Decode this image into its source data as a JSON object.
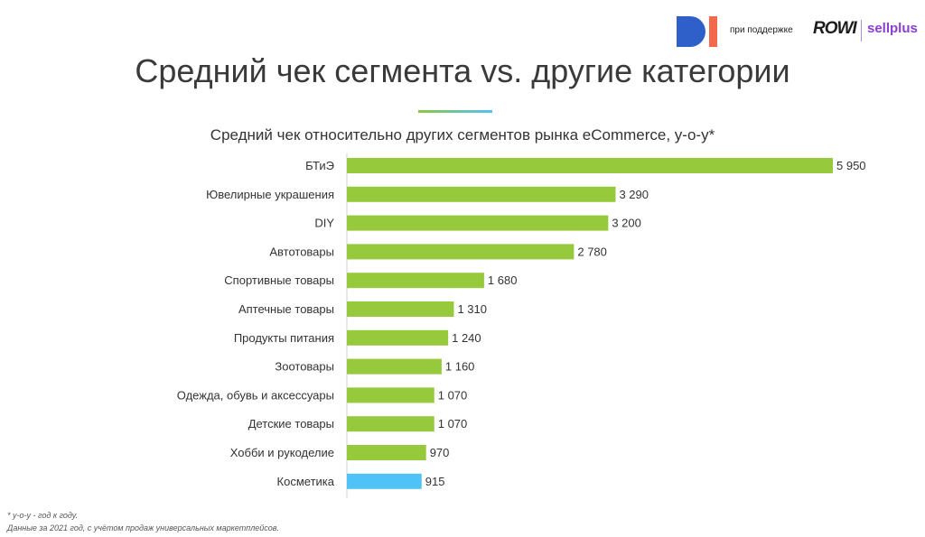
{
  "header": {
    "support_text": "при поддержке",
    "rowi_logo": "ROWI",
    "sellplus_logo": "sellplus"
  },
  "title": "Средний чек сегмента vs. другие категории",
  "chart_data": {
    "type": "bar",
    "orientation": "horizontal",
    "title": "Средний чек относительно других сегментов рынка eCommerce, y-o-y*",
    "categories": [
      "БТиЭ",
      "Ювелирные украшения",
      "DIY",
      "Автотовары",
      "Спортивные товары",
      "Аптечные товары",
      "Продукты питания",
      "Зоотовары",
      "Одежда, обувь и аксессуары",
      "Детские товары",
      "Хобби и рукоделие",
      "Косметика"
    ],
    "values": [
      5950,
      3290,
      3200,
      2780,
      1680,
      1310,
      1240,
      1160,
      1070,
      1070,
      970,
      915
    ],
    "labels": [
      "5 950",
      "3 290",
      "3 200",
      "2 780",
      "1 680",
      "1 310",
      "1 240",
      "1 160",
      "1 070",
      "1 070",
      "970",
      "915"
    ],
    "highlight_index": 11,
    "colors": {
      "default": "#97c93d",
      "highlight": "#4fc3f7"
    },
    "xlim": [
      0,
      5950
    ],
    "xlabel": "",
    "ylabel": ""
  },
  "footnotes": [
    "* y-o-y - год к году.",
    "Данные за 2021 год, с учётом продаж универсальных маркетплейсов."
  ]
}
